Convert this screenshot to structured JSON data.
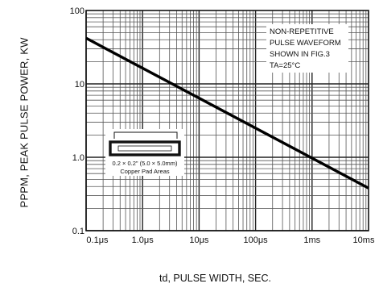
{
  "chart_data": {
    "type": "line",
    "xscale": "log",
    "yscale": "log",
    "xlabel": "td, PULSE WIDTH, SEC.",
    "ylabel": "PPPM, PEAK PULSE POWER, KW",
    "x_ticks": [
      {
        "value": 1e-07,
        "label": "0.1μs"
      },
      {
        "value": 1e-06,
        "label": "1.0μs"
      },
      {
        "value": 1e-05,
        "label": "10μs"
      },
      {
        "value": 0.0001,
        "label": "100μs"
      },
      {
        "value": 0.001,
        "label": "1ms"
      },
      {
        "value": 0.01,
        "label": "10ms"
      }
    ],
    "y_ticks": [
      {
        "value": 100,
        "label": "100"
      },
      {
        "value": 10,
        "label": "10"
      },
      {
        "value": 1.0,
        "label": "1.0"
      },
      {
        "value": 0.1,
        "label": "0.1"
      }
    ],
    "xlim": [
      1e-07,
      0.01
    ],
    "ylim": [
      0.1,
      100
    ],
    "grid": true,
    "series": [
      {
        "values": [
          [
            1e-07,
            42
          ],
          [
            0.01,
            0.38
          ]
        ],
        "color": "#000000"
      }
    ],
    "annotations": [
      {
        "lines": [
          "NON-REPETITIVE",
          "PULSE WAVEFORM",
          "SHOWN IN FIG.3",
          "TA=25°C"
        ]
      }
    ],
    "inset": {
      "caption_lines": [
        "0.2 × 0.2\" (5.0 × 5.0mm)",
        "Copper Pad Areas"
      ]
    }
  }
}
